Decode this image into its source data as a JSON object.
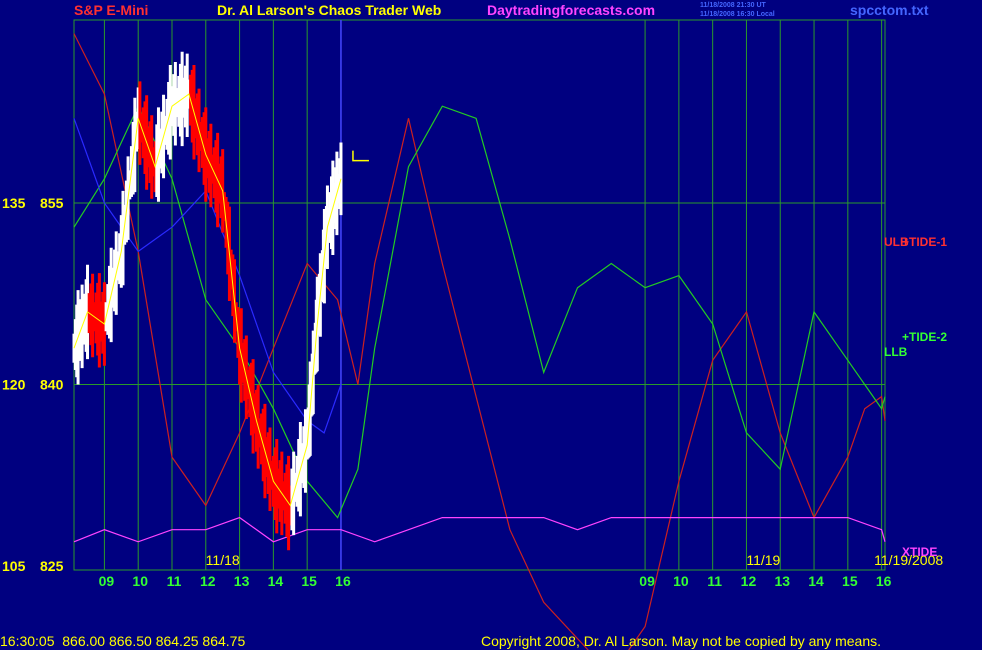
{
  "header": {
    "symbol": "S&P E-Mini",
    "title": "Dr. Al Larson's Chaos Trader Web",
    "site": "Daytradingforecasts.com",
    "time_ut": "11/18/2008 21:30 UT",
    "time_local": "11/18/2008 16:30 Local",
    "file": "spcctom.txt"
  },
  "footer": {
    "quote": "16:30:05  866.00 866.50 864.25 864.75",
    "copyright": "Copyright 2008, Dr. Al Larson. May not be copied by any means."
  },
  "colors": {
    "background": "#000080",
    "grid": "#2a9a2a",
    "price_up": "#ffffff",
    "price_down": "#ff0000",
    "smooth": "#ffff00",
    "ulb": "#cc2020",
    "llb": "#22cc22",
    "blue_avg": "#2a2aff",
    "xtide": "#ff44ff",
    "forecast_now": "#4444ff"
  },
  "chart_data": {
    "type": "line",
    "y_left_ticks": [
      {
        "label": "135",
        "value": 135
      },
      {
        "label": "120",
        "value": 120
      },
      {
        "label": "105",
        "value": 105
      }
    ],
    "y_right_ticks": [
      {
        "label": "855",
        "value": 855
      },
      {
        "label": "840",
        "value": 840
      },
      {
        "label": "825",
        "value": 825
      }
    ],
    "price_range": [
      825,
      855
    ],
    "x_hours": [
      "09",
      "10",
      "11",
      "12",
      "13",
      "14",
      "15",
      "16",
      "09",
      "10",
      "11",
      "12",
      "13",
      "14",
      "15",
      "16"
    ],
    "x_hour_values": [
      9,
      10,
      11,
      12,
      13,
      14,
      15,
      16,
      25,
      26,
      27,
      28,
      29,
      30,
      31,
      32
    ],
    "x_range": [
      8.1,
      32.1
    ],
    "now": 16.0,
    "date_labels": [
      {
        "label": "11/18",
        "x": 12.5
      },
      {
        "label": "11/19",
        "x": 28.5
      },
      {
        "label": "11/19/2008",
        "x": 32.8
      }
    ],
    "series": [
      {
        "name": "ULB",
        "role": "upper-band",
        "x": [
          8.1,
          9,
          10,
          11,
          12,
          13,
          14,
          15,
          15.9,
          16.5,
          17,
          18,
          19,
          20,
          21,
          22,
          23,
          24,
          25,
          26,
          27,
          28,
          29,
          30,
          31,
          31.5,
          32,
          32.1
        ],
        "y": [
          869,
          864,
          851,
          834,
          830,
          836,
          843,
          850,
          847,
          840,
          850,
          862,
          850,
          839,
          828,
          822,
          819,
          816,
          820,
          832,
          842,
          846,
          836,
          829,
          834,
          838,
          839,
          837
        ]
      },
      {
        "name": "LLB",
        "role": "lower-band",
        "x": [
          8.1,
          9,
          10,
          11,
          12,
          13,
          14,
          15,
          15.9,
          16.5,
          17,
          18,
          19,
          20,
          21,
          22,
          23,
          24,
          25,
          26,
          27,
          28,
          29,
          30,
          31,
          31.5,
          32,
          32.1
        ],
        "y": [
          853,
          857,
          863,
          857,
          847,
          843,
          838,
          832,
          829,
          833,
          843,
          858,
          863,
          862,
          852,
          841,
          848,
          850,
          848,
          849,
          845,
          836,
          833,
          846,
          842,
          840,
          838,
          839
        ]
      },
      {
        "name": "blue",
        "role": "average",
        "x": [
          8.1,
          9,
          10,
          11,
          12,
          13,
          14,
          15,
          15.5,
          16
        ],
        "y": [
          862,
          855,
          851,
          853,
          856,
          849,
          841,
          837,
          836,
          840
        ]
      },
      {
        "name": "XTIDE",
        "role": "cycle",
        "x": [
          8.1,
          9,
          10,
          11,
          12,
          13,
          14,
          15,
          16,
          17,
          18,
          19,
          20,
          21,
          22,
          23,
          24,
          25,
          26,
          27,
          28,
          29,
          30,
          31,
          32,
          32.1
        ],
        "y": [
          827,
          828,
          827,
          828,
          828,
          829,
          827,
          828,
          828,
          827,
          828,
          829,
          829,
          829,
          829,
          828,
          829,
          829,
          829,
          829,
          829,
          829,
          829,
          829,
          828,
          827
        ]
      },
      {
        "name": "price",
        "role": "price",
        "x": [
          8.1,
          8.5,
          9,
          9.5,
          10,
          10.5,
          11,
          11.5,
          12,
          12.5,
          13,
          13.5,
          14,
          14.5,
          15,
          15.3,
          15.6,
          16
        ],
        "y": [
          843,
          846,
          845,
          851,
          862,
          858,
          863,
          864,
          859,
          856,
          843,
          837,
          832,
          830,
          835,
          845,
          853,
          857
        ]
      }
    ],
    "labels": {
      "ulb": "ULB",
      "tide1": "+TIDE-1",
      "tide2": "+TIDE-2",
      "llb": "LLB",
      "xtide": "XTIDE"
    }
  }
}
